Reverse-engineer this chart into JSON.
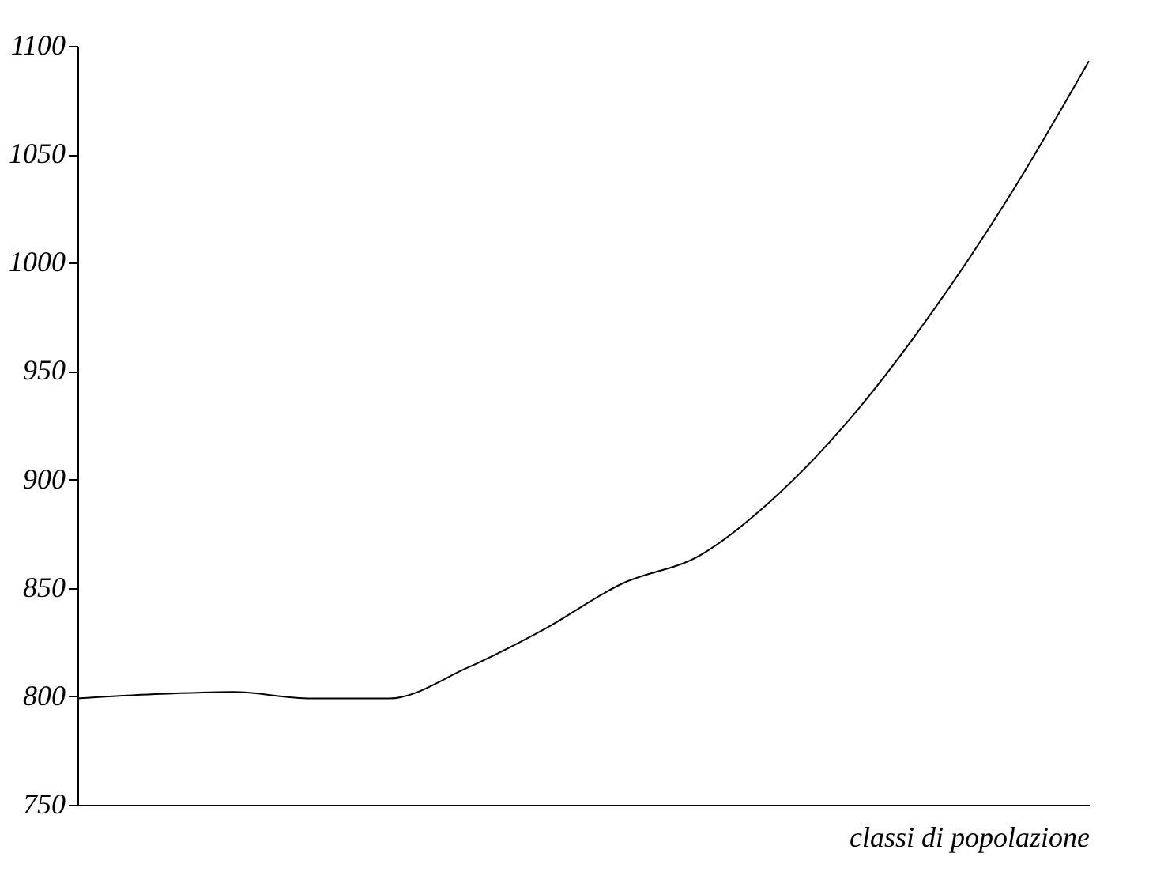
{
  "chart_data": {
    "type": "line",
    "xlabel": "classi di popolazione",
    "categories": [
      null,
      null,
      null,
      null,
      null,
      null,
      null,
      null,
      null,
      null,
      null,
      null,
      null,
      null
    ],
    "series": [
      {
        "color": "#000000",
        "values": [
          799,
          801,
          802,
          799,
          799,
          813,
          831,
          852,
          865,
          893,
          931,
          978,
          1032,
          1093
        ]
      }
    ],
    "ylim": [
      750,
      1100
    ],
    "yticks": [
      750,
      800,
      850,
      900,
      950,
      1000,
      1050,
      1100
    ],
    "grid": false,
    "tick_labels": "y",
    "marker": "none",
    "line_style": "solid"
  }
}
